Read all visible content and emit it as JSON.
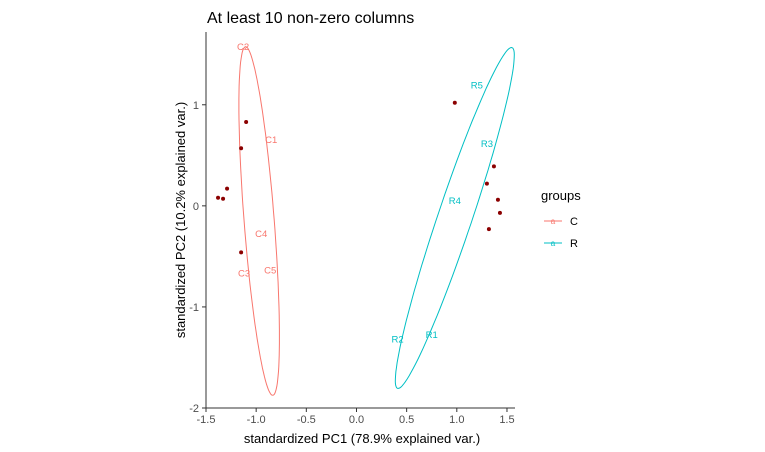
{
  "chart_data": {
    "type": "scatter",
    "title": "At least 10 non-zero columns",
    "xlabel": "standardized PC1 (78.9% explained var.)",
    "ylabel": "standardized PC2 (10.2% explained var.)",
    "xlim": [
      -1.5,
      1.58
    ],
    "ylim": [
      -2.0,
      1.72
    ],
    "x_ticks": [
      -1.5,
      -1.0,
      -0.5,
      0.0,
      0.5,
      1.0,
      1.5
    ],
    "x_tick_labels": [
      "-1.5",
      "-1.0",
      "-0.5",
      "0.0",
      "0.5",
      "1.0",
      "1.5"
    ],
    "y_ticks": [
      -2,
      -1,
      0,
      1
    ],
    "y_tick_labels": [
      "-2",
      "-1",
      "0",
      "1"
    ],
    "grid": false,
    "legend": {
      "title": "groups",
      "placement": "right",
      "entries": [
        {
          "label": "C",
          "color": "#F8766D"
        },
        {
          "label": "R",
          "color": "#00BFC4"
        }
      ]
    },
    "series": [
      {
        "name": "C",
        "color": "#F8766D",
        "labels": [
          {
            "text": "C2",
            "x": -1.13,
            "y": 1.57
          },
          {
            "text": "C1",
            "x": -0.85,
            "y": 0.65
          },
          {
            "text": "C4",
            "x": -0.95,
            "y": -0.28
          },
          {
            "text": "C5",
            "x": -0.86,
            "y": -0.64
          },
          {
            "text": "C3",
            "x": -1.12,
            "y": -0.67
          }
        ],
        "ellipse": {
          "cx": -0.97,
          "cy": -0.15,
          "semi_major": 1.73,
          "semi_minor": 0.15,
          "angle_deg": -85.5
        }
      },
      {
        "name": "R",
        "color": "#00BFC4",
        "labels": [
          {
            "text": "R5",
            "x": 1.2,
            "y": 1.19
          },
          {
            "text": "R3",
            "x": 1.3,
            "y": 0.61
          },
          {
            "text": "R4",
            "x": 0.98,
            "y": 0.05
          },
          {
            "text": "R1",
            "x": 0.75,
            "y": -1.28
          },
          {
            "text": "R2",
            "x": 0.41,
            "y": -1.32
          }
        ],
        "ellipse": {
          "cx": 0.98,
          "cy": -0.12,
          "semi_major": 1.78,
          "semi_minor": 0.17,
          "angle_deg": 71.3
        }
      }
    ],
    "points": {
      "color": "#8B0000",
      "values": [
        {
          "x": -1.1,
          "y": 0.83
        },
        {
          "x": -1.15,
          "y": 0.57
        },
        {
          "x": -1.29,
          "y": 0.17
        },
        {
          "x": -1.38,
          "y": 0.08
        },
        {
          "x": -1.33,
          "y": 0.07
        },
        {
          "x": -1.15,
          "y": -0.46
        },
        {
          "x": 0.98,
          "y": 1.02
        },
        {
          "x": 1.37,
          "y": 0.39
        },
        {
          "x": 1.3,
          "y": 0.22
        },
        {
          "x": 1.41,
          "y": 0.06
        },
        {
          "x": 1.43,
          "y": -0.07
        },
        {
          "x": 1.32,
          "y": -0.23
        }
      ]
    }
  }
}
